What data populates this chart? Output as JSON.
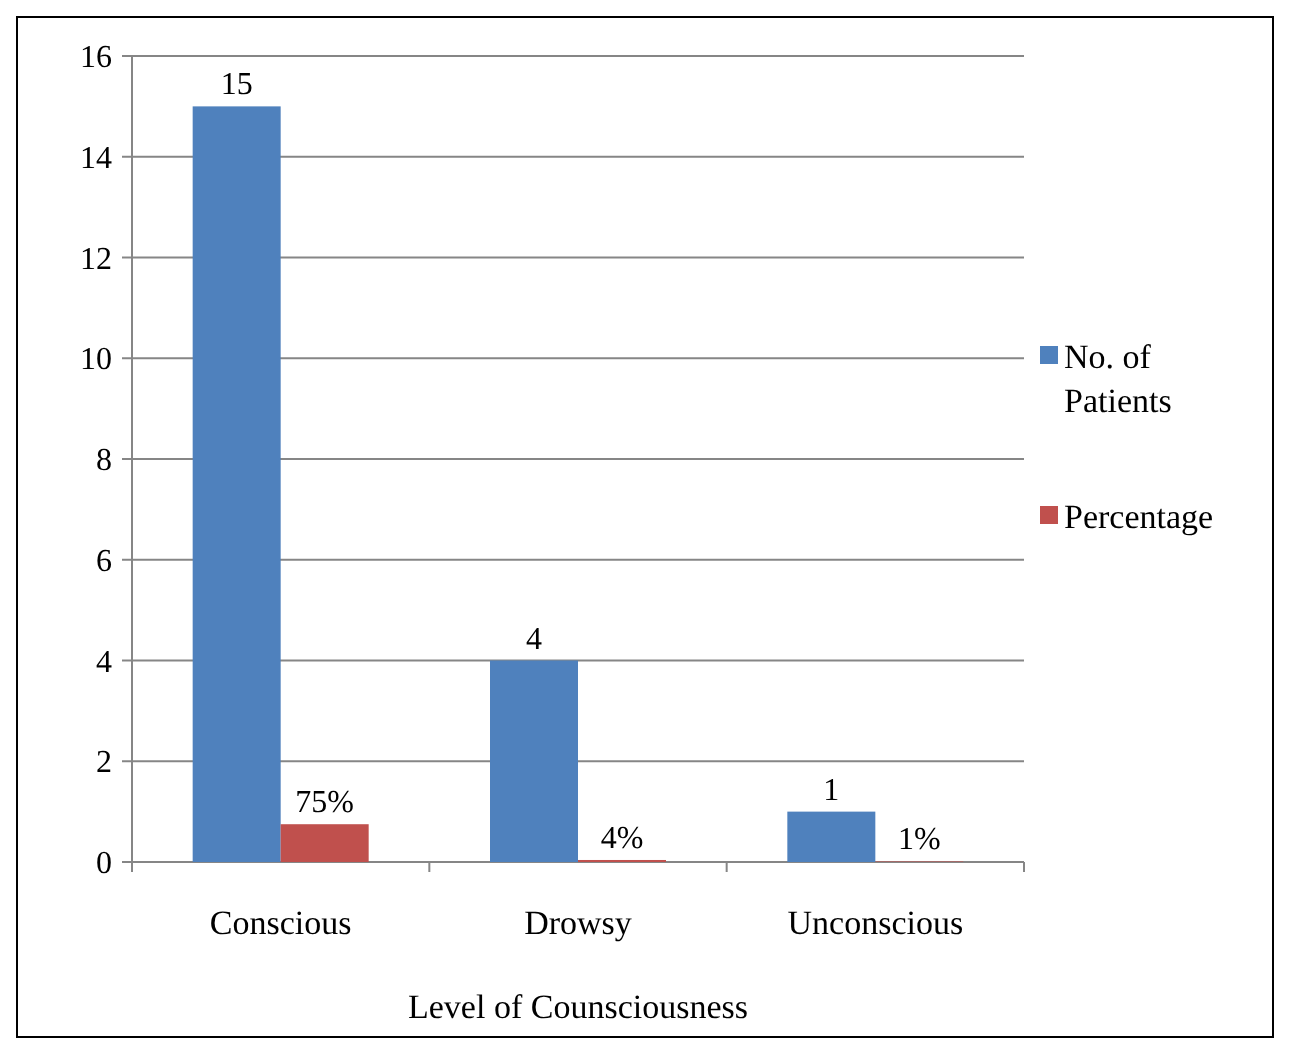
{
  "chart_data": {
    "type": "bar",
    "xlabel": "Level of Counsciousness",
    "categories": [
      "Conscious",
      "Drowsy",
      "Unconscious"
    ],
    "series": [
      {
        "name": "No. of Patients",
        "color": "#4f81bd",
        "values": [
          15,
          4,
          1
        ],
        "value_labels": [
          "15",
          "4",
          "1"
        ]
      },
      {
        "name": "Percentage",
        "color": "#c0504d",
        "values": [
          0.75,
          0.04,
          0.01
        ],
        "value_labels": [
          "75%",
          "4%",
          "1%"
        ]
      }
    ],
    "ylim": [
      0,
      16
    ],
    "yticks": [
      0,
      2,
      4,
      6,
      8,
      10,
      12,
      14,
      16
    ],
    "grid": "y",
    "legend": "right"
  }
}
